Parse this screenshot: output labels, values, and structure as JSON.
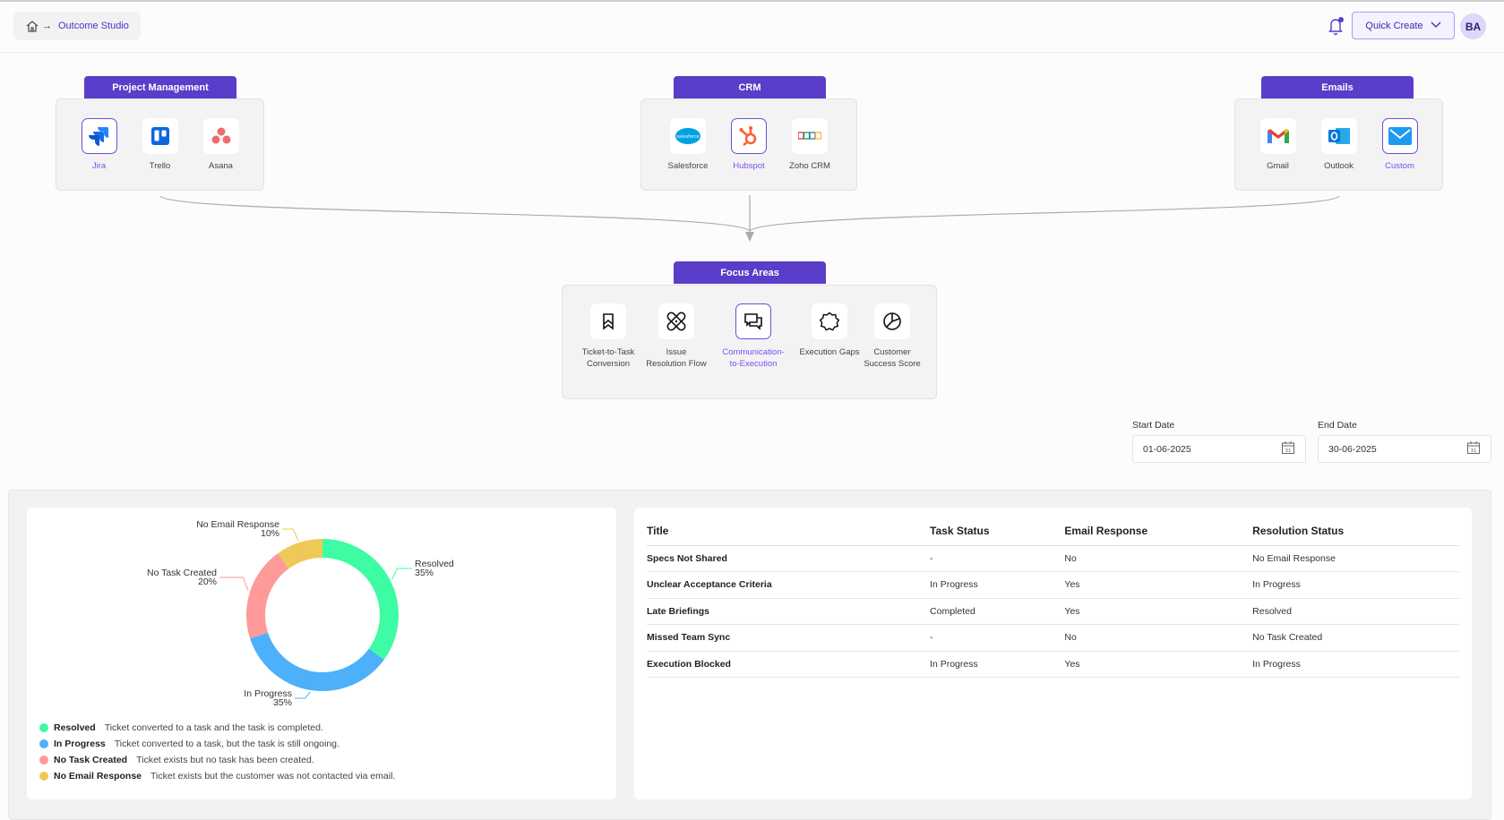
{
  "header": {
    "breadcrumb": "Outcome Studio",
    "quick_create": "Quick Create",
    "avatar": "BA"
  },
  "groups": [
    {
      "title": "Project Management",
      "items": [
        {
          "label": "Jira",
          "icon": "jira-logo",
          "selected": true
        },
        {
          "label": "Trello",
          "icon": "trello-logo"
        },
        {
          "label": "Asana",
          "icon": "asana-logo"
        }
      ]
    },
    {
      "title": "CRM",
      "items": [
        {
          "label": "Salesforce",
          "icon": "salesforce-logo"
        },
        {
          "label": "Hubspot",
          "icon": "hubspot-logo",
          "selected": true
        },
        {
          "label": "Zoho CRM",
          "icon": "zoho-logo"
        }
      ]
    },
    {
      "title": "Emails",
      "items": [
        {
          "label": "Gmail",
          "icon": "gmail-logo"
        },
        {
          "label": "Outlook",
          "icon": "outlook-logo"
        },
        {
          "label": "Custom",
          "icon": "mail-icon",
          "selected": true
        }
      ]
    }
  ],
  "focus": {
    "title": "Focus Areas",
    "items": [
      {
        "label": "Ticket-to-Task Conversion",
        "icon": "bookmark-icon"
      },
      {
        "label": "Issue Resolution Flow",
        "icon": "bandage-icon"
      },
      {
        "label": "Communication-to-Execution",
        "icon": "chat-icon",
        "selected": true
      },
      {
        "label": "Execution Gaps",
        "icon": "badge-icon"
      },
      {
        "label": "Customer Success Score",
        "icon": "pie-icon"
      }
    ]
  },
  "dates": {
    "start_label": "Start Date",
    "start": "01-06-2025",
    "end_label": "End Date",
    "end": "30-06-2025"
  },
  "chart_data": {
    "type": "pie",
    "donut": true,
    "slices": [
      {
        "name": "Resolved",
        "value": 35,
        "pct": "35%",
        "color": "#3dfca3",
        "desc": "Ticket converted to a task and the task is completed."
      },
      {
        "name": "In Progress",
        "value": 35,
        "pct": "35%",
        "color": "#4db0fb",
        "desc": "Ticket converted to a task, but the task is still ongoing."
      },
      {
        "name": "No Task Created",
        "value": 20,
        "pct": "20%",
        "color": "#fe9a9a",
        "desc": "Ticket exists but no task has been created."
      },
      {
        "name": "No Email Response",
        "value": 10,
        "pct": "10%",
        "color": "#efc957",
        "desc": "Ticket exists but the customer was not contacted via email."
      }
    ]
  },
  "table": {
    "headers": [
      "Title",
      "Task Status",
      "Email Response",
      "Resolution Status"
    ],
    "rows": [
      [
        "Specs Not Shared",
        "-",
        "No",
        "No Email Response"
      ],
      [
        "Unclear Acceptance Criteria",
        "In Progress",
        "Yes",
        "In Progress"
      ],
      [
        "Late Briefings",
        "Completed",
        "Yes",
        "Resolved"
      ],
      [
        "Missed Team Sync",
        "-",
        "No",
        "No Task Created"
      ],
      [
        "Execution Blocked",
        "In Progress",
        "Yes",
        "In Progress"
      ]
    ]
  }
}
